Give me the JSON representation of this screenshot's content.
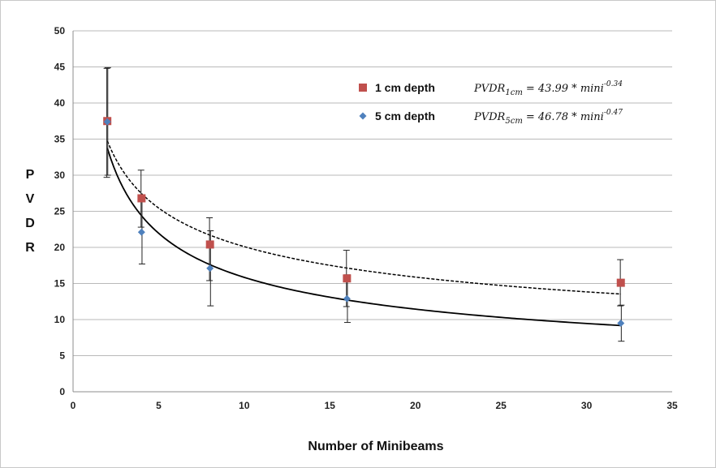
{
  "chart_data": {
    "type": "scatter",
    "title": "",
    "xlabel": "Number of Minibeams",
    "ylabel_letters": [
      "P",
      "V",
      "D",
      "R"
    ],
    "xlim": [
      0,
      35
    ],
    "ylim": [
      0,
      50
    ],
    "xticks": [
      0,
      5,
      10,
      15,
      20,
      25,
      30,
      35
    ],
    "yticks": [
      0,
      5,
      10,
      15,
      20,
      25,
      30,
      35,
      40,
      45,
      50
    ],
    "grid": "horizontal",
    "legend_position": "top-right",
    "series": [
      {
        "name": "1 cm depth",
        "color": "#c0504d",
        "marker": "square",
        "x": [
          2,
          4,
          8,
          16,
          32
        ],
        "y": [
          37.5,
          26.8,
          20.4,
          15.7,
          15.1
        ],
        "err_low": [
          29.7,
          22.8,
          15.4,
          11.8,
          11.9
        ],
        "err_high": [
          44.8,
          30.7,
          24.1,
          19.6,
          18.3
        ],
        "fit": {
          "a": 43.99,
          "b": -0.34,
          "dash": "dashed"
        },
        "equation": {
          "lhs": "PVDR",
          "sub": "1cm",
          "rhs": "= 43.99 * mini",
          "exp": "-0.34"
        }
      },
      {
        "name": "5 cm depth",
        "color": "#4f81bd",
        "marker": "diamond",
        "x": [
          2,
          4,
          8,
          16,
          32
        ],
        "y": [
          37.4,
          22.1,
          17.1,
          12.9,
          9.5
        ],
        "err_low": [
          30.0,
          17.7,
          11.9,
          9.6,
          7.0
        ],
        "err_high": [
          44.9,
          26.5,
          22.3,
          16.2,
          12.0
        ],
        "fit": {
          "a": 46.78,
          "b": -0.47,
          "dash": "solid"
        },
        "equation": {
          "lhs": "PVDR",
          "sub": "5cm",
          "rhs": "= 46.78 * mini",
          "exp": "-0.47"
        }
      }
    ]
  }
}
